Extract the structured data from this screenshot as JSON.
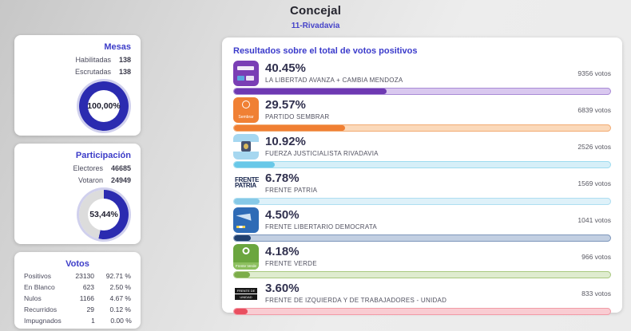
{
  "header": {
    "title": "Concejal",
    "subtitle": "11-Rivadavia"
  },
  "colors": {
    "accent_blue": "#3c3cc8",
    "donut_blue": "#2b2bb0",
    "donut_gray": "#dcdcdc"
  },
  "mesas": {
    "title": "Mesas",
    "rows": [
      {
        "label": "Habilitadas",
        "value": "138"
      },
      {
        "label": "Escrutadas",
        "value": "138"
      }
    ],
    "pct_label": "100,00%",
    "pct_value": 100
  },
  "participacion": {
    "title": "Participación",
    "rows": [
      {
        "label": "Electores",
        "value": "46685"
      },
      {
        "label": "Votaron",
        "value": "24949"
      }
    ],
    "pct_label": "53,44%",
    "pct_value": 53.44
  },
  "votos": {
    "title": "Votos",
    "rows": [
      {
        "label": "Positivos",
        "value": "23130",
        "pct": "92.71 %"
      },
      {
        "label": "En Blanco",
        "value": "623",
        "pct": "2.50 %"
      },
      {
        "label": "Nulos",
        "value": "1166",
        "pct": "4.67 %"
      },
      {
        "label": "Recurridos",
        "value": "29",
        "pct": "0.12 %"
      },
      {
        "label": "Impugnados",
        "value": "1",
        "pct": "0.00 %"
      }
    ]
  },
  "main": {
    "title": "Resultados sobre el total de votos positivos",
    "parties": [
      {
        "pct": "40.45%",
        "pct_value": 40.45,
        "name": "LA LIBERTAD AVANZA + CAMBIA MENDOZA",
        "votes": "9356 votos",
        "bar_color": "#6e39b2",
        "track_color": "#d9c8ef",
        "border_color": "#a98bd6"
      },
      {
        "pct": "29.57%",
        "pct_value": 29.57,
        "name": "PARTIDO SEMBRAR",
        "votes": "6839 votos",
        "bar_color": "#f07f33",
        "track_color": "#fbd9ba",
        "border_color": "#f2ab73",
        "logo_text": "Sembrar"
      },
      {
        "pct": "10.92%",
        "pct_value": 10.92,
        "name": "FUERZA JUSTICIALISTA RIVADAVIA",
        "votes": "2526 votos",
        "bar_color": "#68c8e8",
        "track_color": "#d6eff8",
        "border_color": "#9edcef"
      },
      {
        "pct": "6.78%",
        "pct_value": 6.78,
        "name": "FRENTE PATRIA",
        "votes": "1569 votos",
        "bar_color": "#86c9e7",
        "track_color": "#def1f9",
        "border_color": "#aedef1",
        "logo_line1": "FRENTE",
        "logo_line2": "PATRIA"
      },
      {
        "pct": "4.50%",
        "pct_value": 4.5,
        "name": "FRENTE LIBERTARIO DEMOCRATA",
        "votes": "1041 votos",
        "bar_color": "#20406f",
        "track_color": "#c2cfe2",
        "border_color": "#7e97bb"
      },
      {
        "pct": "4.18%",
        "pct_value": 4.18,
        "name": "FRENTE VERDE",
        "votes": "966 votos",
        "bar_color": "#7cad49",
        "track_color": "#dfeccf",
        "border_color": "#a8c87f",
        "logo_text": "Frente Verde"
      },
      {
        "pct": "3.60%",
        "pct_value": 3.6,
        "name": "FRENTE DE IZQUIERDA Y DE TRABAJADORES - UNIDAD",
        "votes": "833 votos",
        "bar_color": "#e94f60",
        "track_color": "#f9ccd2",
        "border_color": "#f29aa6",
        "logo_line1": "FRENTE DE IZQUIERDA",
        "logo_line2": "UNIDAD"
      }
    ]
  }
}
